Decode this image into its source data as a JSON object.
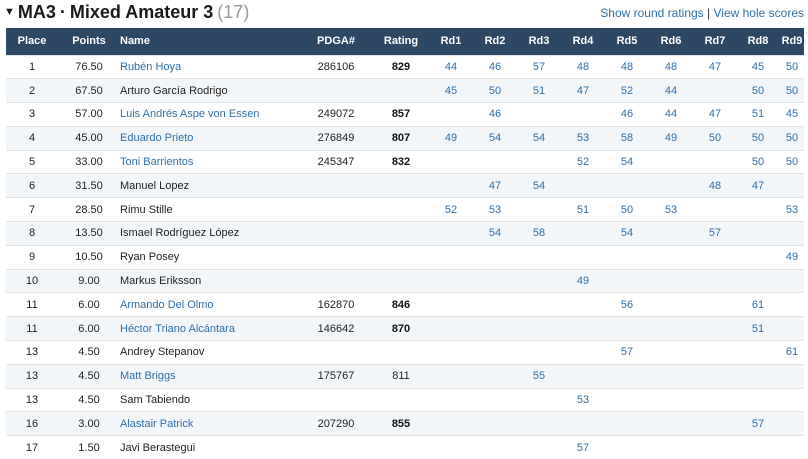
{
  "division": {
    "code": "MA3",
    "separator": "·",
    "name": "Mixed Amateur 3",
    "count": "(17)"
  },
  "links": {
    "round_ratings": "Show round ratings",
    "divider": "|",
    "hole_scores": "View hole scores"
  },
  "columns": [
    "Place",
    "Points",
    "Name",
    "PDGA#",
    "Rating",
    "Rd1",
    "Rd2",
    "Rd3",
    "Rd4",
    "Rd5",
    "Rd6",
    "Rd7",
    "Rd8",
    "Rd9"
  ],
  "rows": [
    {
      "place": "1",
      "points": "76.50",
      "name": "Rubén Hoya",
      "pdga": "286106",
      "rating": "829",
      "rating_bold": true,
      "link": true,
      "rounds": [
        "44",
        "46",
        "57",
        "48",
        "48",
        "48",
        "47",
        "45",
        "50"
      ]
    },
    {
      "place": "2",
      "points": "67.50",
      "name": "Arturo García Rodrigo",
      "pdga": "",
      "rating": "",
      "rating_bold": false,
      "link": false,
      "rounds": [
        "45",
        "50",
        "51",
        "47",
        "52",
        "44",
        "",
        "50",
        "50"
      ]
    },
    {
      "place": "3",
      "points": "57.00",
      "name": "Luis Andrés Aspe von Essen",
      "pdga": "249072",
      "rating": "857",
      "rating_bold": true,
      "link": true,
      "rounds": [
        "",
        "46",
        "",
        "",
        "46",
        "44",
        "47",
        "51",
        "45"
      ]
    },
    {
      "place": "4",
      "points": "45.00",
      "name": "Eduardo Prieto",
      "pdga": "276849",
      "rating": "807",
      "rating_bold": true,
      "link": true,
      "rounds": [
        "49",
        "54",
        "54",
        "53",
        "58",
        "49",
        "50",
        "50",
        "50"
      ]
    },
    {
      "place": "5",
      "points": "33.00",
      "name": "Toni Barrientos",
      "pdga": "245347",
      "rating": "832",
      "rating_bold": true,
      "link": true,
      "rounds": [
        "",
        "",
        "",
        "52",
        "54",
        "",
        "",
        "50",
        "50"
      ]
    },
    {
      "place": "6",
      "points": "31.50",
      "name": "Manuel Lopez",
      "pdga": "",
      "rating": "",
      "rating_bold": false,
      "link": false,
      "rounds": [
        "",
        "47",
        "54",
        "",
        "",
        "",
        "48",
        "47",
        ""
      ]
    },
    {
      "place": "7",
      "points": "28.50",
      "name": "Rimu Stille",
      "pdga": "",
      "rating": "",
      "rating_bold": false,
      "link": false,
      "rounds": [
        "52",
        "53",
        "",
        "51",
        "50",
        "53",
        "",
        "",
        "53"
      ]
    },
    {
      "place": "8",
      "points": "13.50",
      "name": "Ismael Rodríguez López",
      "pdga": "",
      "rating": "",
      "rating_bold": false,
      "link": false,
      "rounds": [
        "",
        "54",
        "58",
        "",
        "54",
        "",
        "57",
        "",
        ""
      ]
    },
    {
      "place": "9",
      "points": "10.50",
      "name": "Ryan Posey",
      "pdga": "",
      "rating": "",
      "rating_bold": false,
      "link": false,
      "rounds": [
        "",
        "",
        "",
        "",
        "",
        "",
        "",
        "",
        "49"
      ]
    },
    {
      "place": "10",
      "points": "9.00",
      "name": "Markus Eriksson",
      "pdga": "",
      "rating": "",
      "rating_bold": false,
      "link": false,
      "rounds": [
        "",
        "",
        "",
        "49",
        "",
        "",
        "",
        "",
        ""
      ]
    },
    {
      "place": "11",
      "points": "6.00",
      "name": "Armando Del Olmo",
      "pdga": "162870",
      "rating": "846",
      "rating_bold": true,
      "link": true,
      "rounds": [
        "",
        "",
        "",
        "",
        "56",
        "",
        "",
        "61",
        ""
      ]
    },
    {
      "place": "11",
      "points": "6.00",
      "name": "Héctor Triano Alcántara",
      "pdga": "146642",
      "rating": "870",
      "rating_bold": true,
      "link": true,
      "rounds": [
        "",
        "",
        "",
        "",
        "",
        "",
        "",
        "51",
        ""
      ]
    },
    {
      "place": "13",
      "points": "4.50",
      "name": "Andrey Stepanov",
      "pdga": "",
      "rating": "",
      "rating_bold": false,
      "link": false,
      "rounds": [
        "",
        "",
        "",
        "",
        "57",
        "",
        "",
        "",
        "61"
      ]
    },
    {
      "place": "13",
      "points": "4.50",
      "name": "Matt Briggs",
      "pdga": "175767",
      "rating": "811",
      "rating_bold": false,
      "link": true,
      "rounds": [
        "",
        "",
        "55",
        "",
        "",
        "",
        "",
        "",
        ""
      ]
    },
    {
      "place": "13",
      "points": "4.50",
      "name": "Sam Tabiendo",
      "pdga": "",
      "rating": "",
      "rating_bold": false,
      "link": false,
      "rounds": [
        "",
        "",
        "",
        "53",
        "",
        "",
        "",
        "",
        ""
      ]
    },
    {
      "place": "16",
      "points": "3.00",
      "name": "Alastair Patrick",
      "pdga": "207290",
      "rating": "855",
      "rating_bold": true,
      "link": true,
      "rounds": [
        "",
        "",
        "",
        "",
        "",
        "",
        "",
        "57",
        ""
      ]
    },
    {
      "place": "17",
      "points": "1.50",
      "name": "Javi Berastegui",
      "pdga": "",
      "rating": "",
      "rating_bold": false,
      "link": false,
      "rounds": [
        "",
        "",
        "",
        "57",
        "",
        "",
        "",
        "",
        ""
      ]
    }
  ]
}
